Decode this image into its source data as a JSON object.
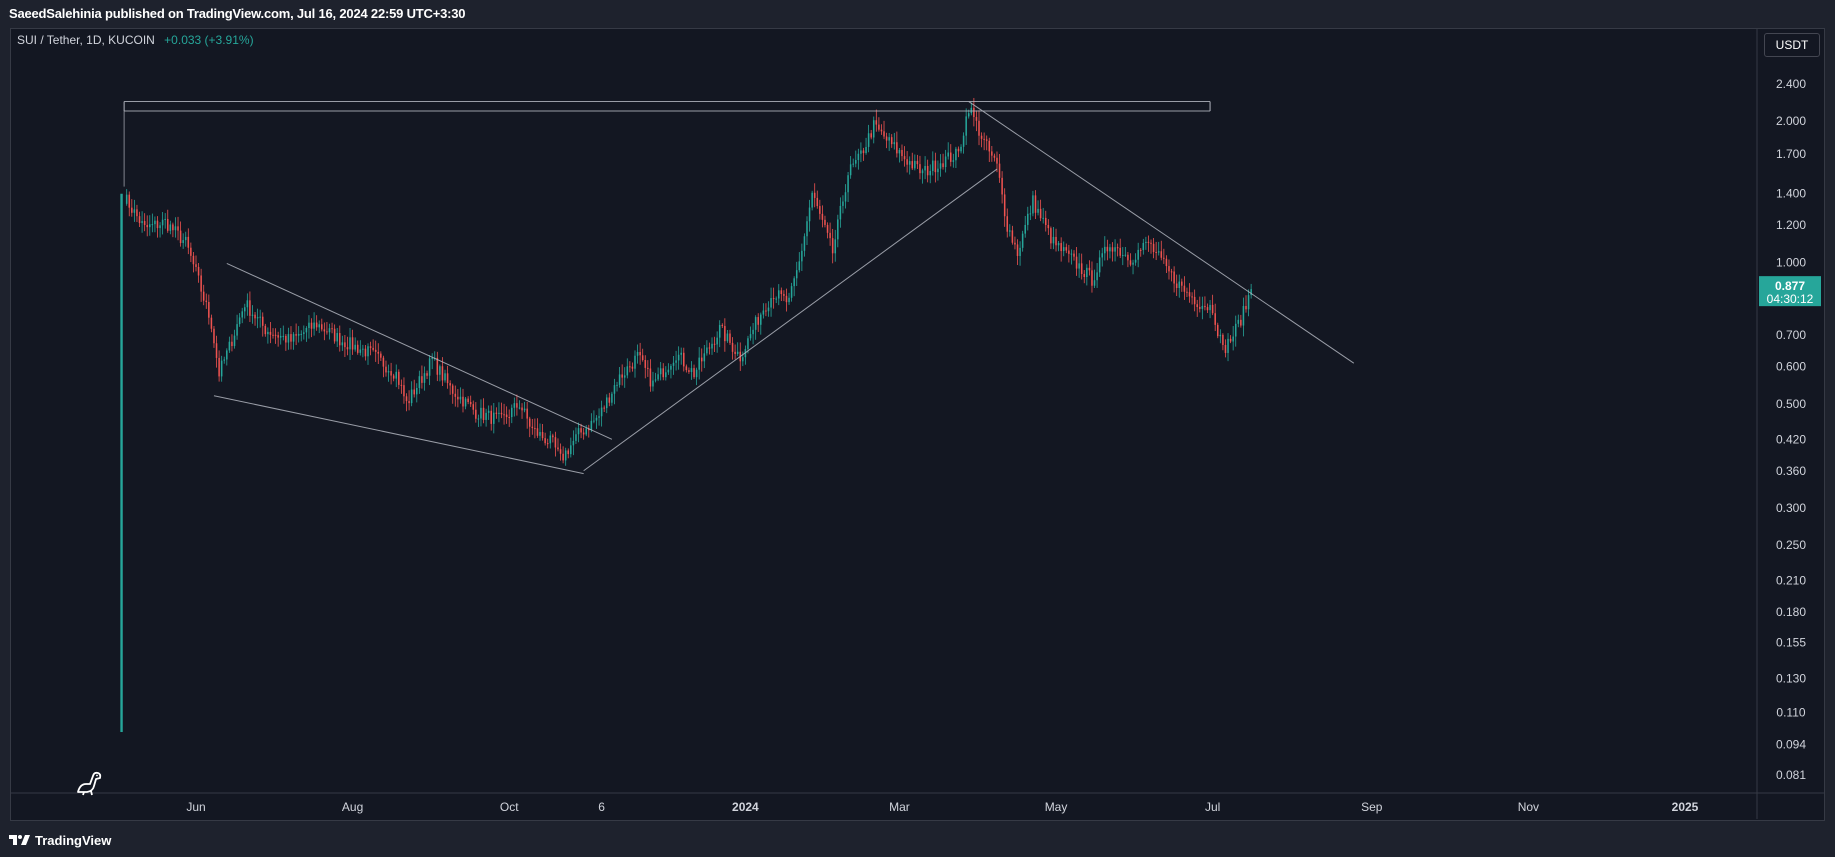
{
  "header": {
    "publisher_line": "SaeedSalehinia published on TradingView.com, Jul 16, 2024 22:59 UTC+3:30"
  },
  "symbol": {
    "title": "SUI / Tether, 1D, KUCOIN",
    "change": "+0.033 (+3.91%)"
  },
  "currency_button": "USDT",
  "footer": {
    "brand": "TradingView"
  },
  "price_label": {
    "price": "0.877",
    "countdown": "04:30:12"
  },
  "colors": {
    "up": "#26a69a",
    "down": "#ef5350",
    "background": "#131722",
    "frame": "#1e222d",
    "trendline": "#b2b5be"
  },
  "chart_data": {
    "type": "candlestick",
    "title": "SUI / Tether, 1D, KUCOIN",
    "scale": "log",
    "ylim": [
      0.075,
      3.0
    ],
    "y_ticks": [
      2.4,
      2.0,
      1.7,
      1.4,
      1.2,
      1.0,
      0.7,
      0.6,
      0.5,
      0.42,
      0.36,
      0.3,
      0.25,
      0.21,
      0.18,
      0.155,
      0.13,
      0.11,
      0.094,
      0.081
    ],
    "y_tick_labels": [
      "2.400",
      "2.000",
      "1.700",
      "1.400",
      "1.200",
      "1.000",
      "0.700",
      "0.600",
      "0.500",
      "0.420",
      "0.360",
      "0.300",
      "0.250",
      "0.210",
      "0.180",
      "0.155",
      "0.130",
      "0.110",
      "0.094",
      "0.081"
    ],
    "x_ticks": [
      "Jun",
      "Aug",
      "Oct",
      "6",
      "2024",
      "Mar",
      "May",
      "Jul",
      "Sep",
      "Nov",
      "2025"
    ],
    "x_tick_dates": [
      "2023-06-01",
      "2023-08-01",
      "2023-10-01",
      "2023-11-06",
      "2024-01-01",
      "2024-03-01",
      "2024-05-01",
      "2024-07-01",
      "2024-09-01",
      "2024-11-01",
      "2025-01-01"
    ],
    "first_candle": {
      "date": "2023-05-03",
      "open": 0.1,
      "close": 1.4,
      "high": 1.5,
      "low": 0.1
    },
    "path_points": [
      [
        "2023-05-04",
        1.38
      ],
      [
        "2023-05-12",
        1.18
      ],
      [
        "2023-05-20",
        1.22
      ],
      [
        "2023-05-28",
        1.1
      ],
      [
        "2023-06-01",
        0.95
      ],
      [
        "2023-06-07",
        0.74
      ],
      [
        "2023-06-10",
        0.58
      ],
      [
        "2023-06-14",
        0.66
      ],
      [
        "2023-06-20",
        0.82
      ],
      [
        "2023-06-28",
        0.72
      ],
      [
        "2023-07-08",
        0.68
      ],
      [
        "2023-07-18",
        0.74
      ],
      [
        "2023-07-28",
        0.68
      ],
      [
        "2023-08-08",
        0.64
      ],
      [
        "2023-08-18",
        0.58
      ],
      [
        "2023-08-22",
        0.5
      ],
      [
        "2023-09-01",
        0.62
      ],
      [
        "2023-09-08",
        0.54
      ],
      [
        "2023-09-18",
        0.48
      ],
      [
        "2023-09-28",
        0.46
      ],
      [
        "2023-10-05",
        0.5
      ],
      [
        "2023-10-10",
        0.44
      ],
      [
        "2023-10-18",
        0.41
      ],
      [
        "2023-10-21",
        0.38
      ],
      [
        "2023-10-28",
        0.43
      ],
      [
        "2023-11-05",
        0.47
      ],
      [
        "2023-11-12",
        0.56
      ],
      [
        "2023-11-20",
        0.63
      ],
      [
        "2023-11-26",
        0.55
      ],
      [
        "2023-12-05",
        0.64
      ],
      [
        "2023-12-12",
        0.58
      ],
      [
        "2023-12-22",
        0.72
      ],
      [
        "2023-12-30",
        0.63
      ],
      [
        "2024-01-08",
        0.8
      ],
      [
        "2024-01-12",
        0.86
      ],
      [
        "2024-01-18",
        0.82
      ],
      [
        "2024-01-22",
        1.0
      ],
      [
        "2024-01-27",
        1.4
      ],
      [
        "2024-02-04",
        1.05
      ],
      [
        "2024-02-10",
        1.55
      ],
      [
        "2024-02-14",
        1.65
      ],
      [
        "2024-02-20",
        1.95
      ],
      [
        "2024-02-26",
        1.8
      ],
      [
        "2024-03-04",
        1.65
      ],
      [
        "2024-03-10",
        1.55
      ],
      [
        "2024-03-18",
        1.65
      ],
      [
        "2024-03-24",
        1.7
      ],
      [
        "2024-03-28",
        2.15
      ],
      [
        "2024-04-03",
        1.8
      ],
      [
        "2024-04-08",
        1.6
      ],
      [
        "2024-04-12",
        1.2
      ],
      [
        "2024-04-16",
        1.05
      ],
      [
        "2024-04-22",
        1.35
      ],
      [
        "2024-04-30",
        1.1
      ],
      [
        "2024-05-10",
        0.98
      ],
      [
        "2024-05-15",
        0.92
      ],
      [
        "2024-05-22",
        1.1
      ],
      [
        "2024-05-30",
        1.02
      ],
      [
        "2024-06-06",
        1.1
      ],
      [
        "2024-06-14",
        0.95
      ],
      [
        "2024-06-20",
        0.87
      ],
      [
        "2024-06-26",
        0.82
      ],
      [
        "2024-07-01",
        0.8
      ],
      [
        "2024-07-05",
        0.65
      ],
      [
        "2024-07-09",
        0.7
      ],
      [
        "2024-07-13",
        0.78
      ],
      [
        "2024-07-16",
        0.877
      ]
    ],
    "trendlines": [
      {
        "from": [
          "2023-05-04",
          2.2
        ],
        "to": [
          "2024-06-30",
          2.2
        ]
      },
      {
        "from": [
          "2023-05-04",
          2.1
        ],
        "to": [
          "2024-06-30",
          2.1
        ]
      },
      {
        "from": [
          "2023-06-13",
          0.995
        ],
        "to": [
          "2023-11-10",
          0.42
        ]
      },
      {
        "from": [
          "2023-06-08",
          0.52
        ],
        "to": [
          "2023-10-30",
          0.355
        ]
      },
      {
        "from": [
          "2023-10-30",
          0.36
        ],
        "to": [
          "2024-04-08",
          1.58
        ]
      },
      {
        "from": [
          "2024-03-28",
          2.2
        ],
        "to": [
          "2024-08-25",
          0.61
        ]
      }
    ],
    "last_price": 0.877
  }
}
